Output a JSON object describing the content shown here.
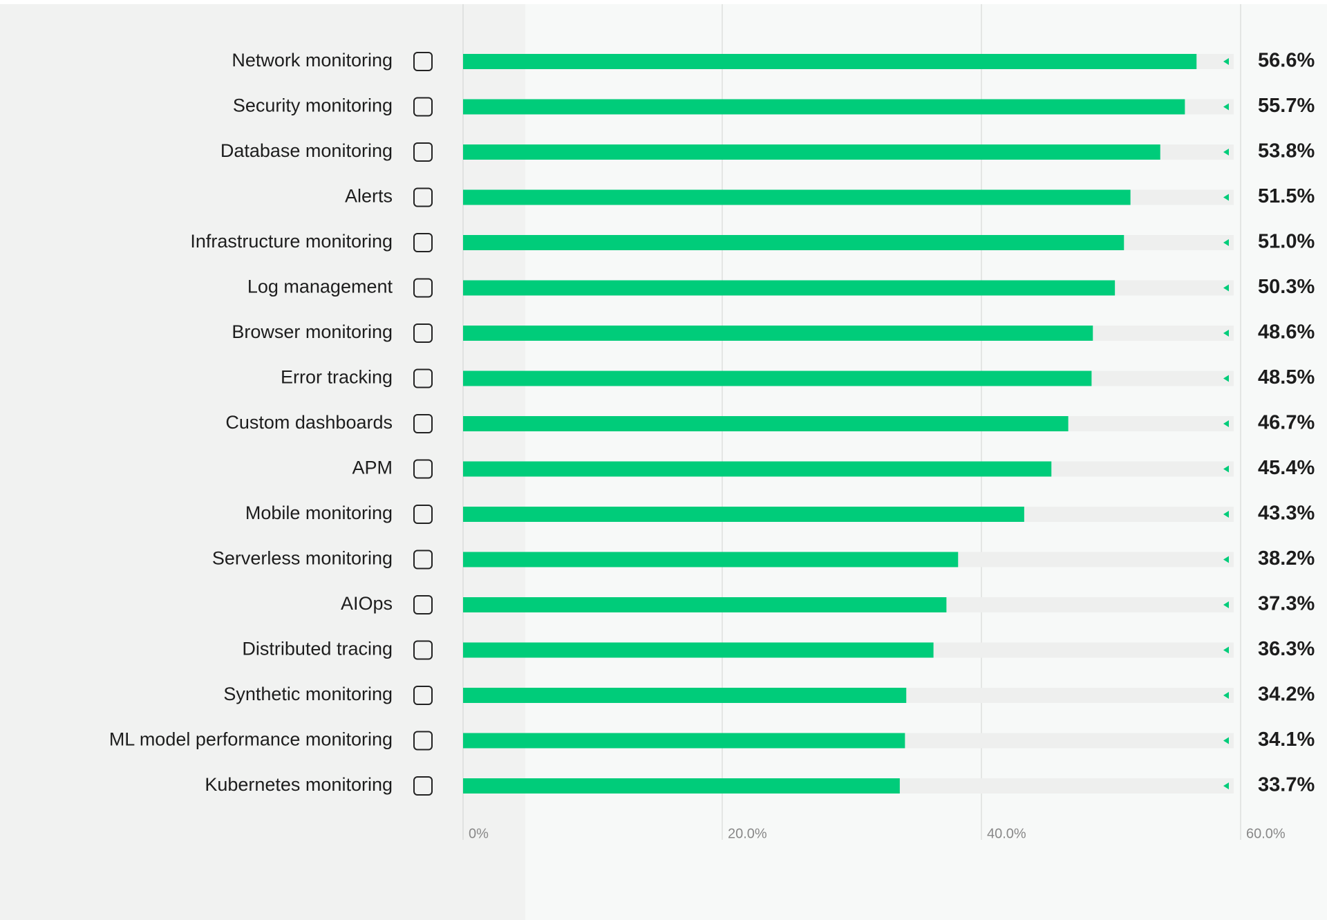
{
  "chart_data": {
    "type": "bar",
    "orientation": "horizontal",
    "categories": [
      "Network monitoring",
      "Security monitoring",
      "Database monitoring",
      "Alerts",
      "Infrastructure monitoring",
      "Log management",
      "Browser monitoring",
      "Error tracking",
      "Custom dashboards",
      "APM",
      "Mobile monitoring",
      "Serverless monitoring",
      "AIOps",
      "Distributed tracing",
      "Synthetic monitoring",
      "ML model performance monitoring",
      "Kubernetes monitoring"
    ],
    "values": [
      56.6,
      55.7,
      53.8,
      51.5,
      51.0,
      50.3,
      48.6,
      48.5,
      46.7,
      45.4,
      43.3,
      38.2,
      37.3,
      36.3,
      34.2,
      34.1,
      33.7
    ],
    "value_labels": [
      "56.6%",
      "55.7%",
      "53.8%",
      "51.5%",
      "51.0%",
      "50.3%",
      "48.6%",
      "48.5%",
      "46.7%",
      "45.4%",
      "43.3%",
      "38.2%",
      "37.3%",
      "36.3%",
      "34.2%",
      "34.1%",
      "33.7%"
    ],
    "color": "#00cc7a",
    "xlim": [
      0,
      60
    ],
    "xticks": [
      {
        "value": 0,
        "label": "0%"
      },
      {
        "value": 20,
        "label": "20.0%"
      },
      {
        "value": 40,
        "label": "40.0%"
      },
      {
        "value": 60,
        "label": "60.0%"
      }
    ],
    "grid": true
  }
}
